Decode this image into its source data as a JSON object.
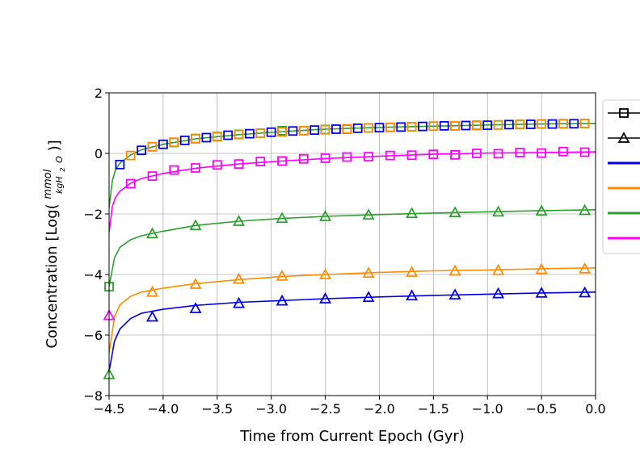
{
  "chart_data": {
    "type": "line",
    "xlabel": "Time from Current Epoch (Gyr)",
    "ylabel_prefix": "Concentration [Log(",
    "ylabel_num": "mmol",
    "ylabel_den": "kgH",
    "ylabel_sub": "2",
    "ylabel_den_end": "O",
    "ylabel_suffix": ")]",
    "xlim": [
      -4.5,
      0.0
    ],
    "ylim": [
      -8,
      2
    ],
    "grid": true,
    "legend_position": "right",
    "xticks": [
      -4.5,
      -4.0,
      -3.5,
      -3.0,
      -2.5,
      -2.0,
      -1.5,
      -1.0,
      -0.5,
      0.0
    ],
    "xtick_labels": [
      "−4.5",
      "−4.0",
      "−3.5",
      "−3.0",
      "−2.5",
      "−2.0",
      "−1.5",
      "−1.0",
      "−0.5",
      "0.0"
    ],
    "yticks": [
      -8,
      -6,
      -4,
      -2,
      0,
      2
    ],
    "ytick_labels": [
      "−8",
      "−6",
      "−4",
      "−2",
      "0",
      "2"
    ],
    "curves": [
      {
        "color": "#0000ee",
        "x": [
          -4.5,
          -4.45,
          -4.4,
          -4.3,
          -4.2,
          -4.0,
          -3.7,
          -3.3,
          -2.9,
          -2.5,
          -2.0,
          -1.5,
          -1.0,
          -0.5,
          0.0
        ],
        "y": [
          -7.2,
          -6.2,
          -5.8,
          -5.45,
          -5.28,
          -5.15,
          -5.02,
          -4.92,
          -4.86,
          -4.8,
          -4.74,
          -4.69,
          -4.65,
          -4.61,
          -4.58
        ]
      },
      {
        "color": "#ff8c00",
        "x": [
          -4.5,
          -4.45,
          -4.4,
          -4.3,
          -4.2,
          -4.0,
          -3.7,
          -3.3,
          -2.9,
          -2.5,
          -2.0,
          -1.5,
          -1.0,
          -0.5,
          0.0
        ],
        "y": [
          -6.6,
          -5.4,
          -5.0,
          -4.72,
          -4.58,
          -4.45,
          -4.3,
          -4.17,
          -4.07,
          -4.0,
          -3.93,
          -3.88,
          -3.85,
          -3.81,
          -3.78
        ]
      },
      {
        "color": "#2ca02c",
        "x": [
          -4.5,
          -4.45,
          -4.4,
          -4.3,
          -4.2,
          -4.0,
          -3.7,
          -3.3,
          -2.9,
          -2.5,
          -2.0,
          -1.5,
          -1.0,
          -0.5,
          0.0
        ],
        "y": [
          -4.4,
          -3.45,
          -3.1,
          -2.85,
          -2.72,
          -2.57,
          -2.38,
          -2.24,
          -2.15,
          -2.08,
          -2.02,
          -1.97,
          -1.93,
          -1.89,
          -1.86
        ]
      },
      {
        "color": "#ff00ff",
        "x": [
          -4.5,
          -4.47,
          -4.44,
          -4.4,
          -4.3,
          -4.2,
          -4.0,
          -3.7,
          -3.3,
          -2.9,
          -2.5,
          -2.0,
          -1.5,
          -1.0,
          -0.5,
          0.0
        ],
        "y": [
          -2.6,
          -1.75,
          -1.45,
          -1.25,
          -0.98,
          -0.83,
          -0.66,
          -0.49,
          -0.35,
          -0.25,
          -0.17,
          -0.09,
          -0.03,
          0.01,
          0.03,
          0.05
        ]
      },
      {
        "color": "#2ca02c",
        "x": [
          -4.5,
          -4.47,
          -4.44,
          -4.4,
          -4.3,
          -4.2,
          -4.0,
          -3.7,
          -3.3,
          -2.9,
          -2.5,
          -2.0,
          -1.5,
          -1.0,
          -0.5,
          0.0
        ],
        "y": [
          -1.8,
          -0.9,
          -0.55,
          -0.32,
          -0.05,
          0.12,
          0.3,
          0.48,
          0.62,
          0.72,
          0.8,
          0.86,
          0.9,
          0.94,
          0.97,
          0.99
        ]
      }
    ],
    "marker_series": [
      {
        "marker": "triangle",
        "color": "#0000ee",
        "x": [
          -4.1,
          -3.7,
          -3.3,
          -2.9,
          -2.5,
          -2.1,
          -1.7,
          -1.3,
          -0.9,
          -0.5,
          -0.1
        ],
        "y": [
          -5.4,
          -5.12,
          -4.95,
          -4.87,
          -4.8,
          -4.75,
          -4.7,
          -4.67,
          -4.63,
          -4.61,
          -4.6
        ]
      },
      {
        "marker": "triangle",
        "color": "#ff8c00",
        "x": [
          -4.1,
          -3.7,
          -3.3,
          -2.9,
          -2.5,
          -2.1,
          -1.7,
          -1.3,
          -0.9,
          -0.5,
          -0.1
        ],
        "y": [
          -4.58,
          -4.32,
          -4.15,
          -4.05,
          -4.0,
          -3.95,
          -3.92,
          -3.88,
          -3.86,
          -3.83,
          -3.81
        ]
      },
      {
        "marker": "triangle",
        "color": "#2ca02c",
        "x": [
          -4.5,
          -4.1,
          -3.7,
          -3.3,
          -2.9,
          -2.5,
          -2.1,
          -1.7,
          -1.3,
          -0.9,
          -0.5,
          -0.1
        ],
        "y": [
          -7.3,
          -2.65,
          -2.38,
          -2.24,
          -2.14,
          -2.08,
          -2.03,
          -1.98,
          -1.95,
          -1.93,
          -1.9,
          -1.88
        ]
      },
      {
        "marker": "triangle",
        "color": "#ff00ff",
        "x": [
          -4.5
        ],
        "y": [
          -5.35
        ]
      },
      {
        "marker": "square",
        "color": "#ff00ff",
        "x": [
          -4.3,
          -4.1,
          -3.9,
          -3.7,
          -3.5,
          -3.3,
          -3.1,
          -2.9,
          -2.7,
          -2.5,
          -2.3,
          -2.1,
          -1.9,
          -1.7,
          -1.5,
          -1.3,
          -1.1,
          -0.9,
          -0.7,
          -0.5,
          -0.3,
          -0.1
        ],
        "y": [
          -1.0,
          -0.75,
          -0.55,
          -0.48,
          -0.38,
          -0.35,
          -0.27,
          -0.25,
          -0.18,
          -0.16,
          -0.12,
          -0.11,
          -0.07,
          -0.06,
          -0.03,
          -0.05,
          0.0,
          -0.01,
          0.03,
          0.01,
          0.06,
          0.04
        ]
      },
      {
        "marker": "square",
        "color": "#2ca02c",
        "x": [
          -4.5,
          -4.1,
          -3.9,
          -3.7,
          -3.5,
          -3.3,
          -3.1,
          -2.9,
          -2.7,
          -2.5,
          -2.3,
          -2.1,
          -1.9,
          -1.7,
          -1.5,
          -1.3,
          -1.1,
          -0.9,
          -0.7,
          -0.5,
          -0.3,
          -0.1
        ],
        "y": [
          -4.4,
          0.22,
          0.36,
          0.49,
          0.56,
          0.63,
          0.67,
          0.75,
          0.75,
          0.79,
          0.8,
          0.84,
          0.86,
          0.88,
          0.9,
          0.91,
          0.93,
          0.94,
          0.96,
          0.97,
          0.98,
          0.99
        ]
      },
      {
        "marker": "square",
        "color": "#ff8c00",
        "x": [
          -4.3,
          -4.1,
          -3.9,
          -3.7,
          -3.5,
          -3.3,
          -3.1,
          -2.9,
          -2.7,
          -2.5,
          -2.3,
          -2.1,
          -1.9,
          -1.7,
          -1.5,
          -1.3,
          -1.1,
          -0.9,
          -0.7,
          -0.5,
          -0.3,
          -0.1
        ],
        "y": [
          -0.07,
          0.22,
          0.37,
          0.48,
          0.55,
          0.62,
          0.67,
          0.71,
          0.75,
          0.78,
          0.81,
          0.84,
          0.86,
          0.88,
          0.9,
          0.91,
          0.92,
          0.94,
          0.95,
          0.97,
          0.98,
          0.99
        ]
      },
      {
        "marker": "square",
        "color": "#0000ee",
        "x": [
          -4.4,
          -4.2,
          -4.0,
          -3.8,
          -3.6,
          -3.4,
          -3.2,
          -3.0,
          -2.8,
          -2.6,
          -2.4,
          -2.2,
          -2.0,
          -1.8,
          -1.6,
          -1.4,
          -1.2,
          -1.0,
          -0.8,
          -0.6,
          -0.4,
          -0.2
        ],
        "y": [
          -0.37,
          0.1,
          0.3,
          0.43,
          0.52,
          0.6,
          0.65,
          0.7,
          0.74,
          0.77,
          0.8,
          0.83,
          0.85,
          0.87,
          0.89,
          0.91,
          0.92,
          0.93,
          0.95,
          0.96,
          0.97,
          0.98
        ]
      }
    ],
    "legend": [
      {
        "kind": "marker",
        "marker": "square",
        "color": "#000000"
      },
      {
        "kind": "marker",
        "marker": "triangle",
        "color": "#000000"
      },
      {
        "kind": "line",
        "color": "#0000ee"
      },
      {
        "kind": "line",
        "color": "#ff8c00"
      },
      {
        "kind": "line",
        "color": "#2ca02c"
      },
      {
        "kind": "line",
        "color": "#ff00ff"
      }
    ]
  }
}
